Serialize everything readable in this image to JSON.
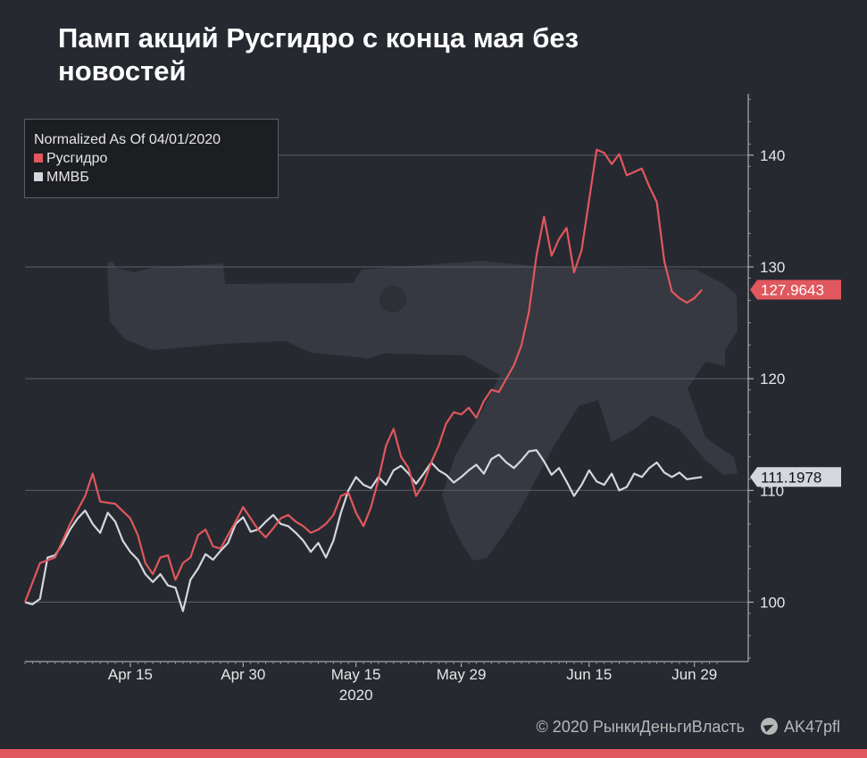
{
  "title": "Памп акций Русгидро с конца мая без новостей",
  "colors": {
    "background": "#262930",
    "rusgidro": "#e0575d",
    "mmvb": "#d4d8de",
    "grid": "#5d6068",
    "text": "#ffffff"
  },
  "legend": {
    "header": "Normalized As Of 04/01/2020",
    "items": [
      {
        "label": "Русгидро",
        "color": "#e0575d"
      },
      {
        "label": "ММВБ",
        "color": "#d4d8de"
      }
    ]
  },
  "footer": {
    "copyright": "© 2020  РынкиДеньгиВласть",
    "telegram": "AK47pfl"
  },
  "chart_data": {
    "type": "line",
    "x_tick_labels": [
      "Apr 15",
      "Apr 30",
      "May 15",
      "May 29",
      "Jun 15",
      "Jun 29"
    ],
    "x_tick_days": [
      14,
      29,
      44,
      58,
      75,
      89
    ],
    "year_label": "2020",
    "year_day": 44,
    "x_range_days": [
      0,
      92
    ],
    "y_ticks": [
      100,
      110,
      120,
      130,
      140
    ],
    "ylim": [
      95,
      145.5
    ],
    "grid": "horizontal",
    "legend_position": "top-left",
    "last_value_labels": [
      "127.9643",
      "111.1978"
    ],
    "series": [
      {
        "name": "Русгидро",
        "color": "#e0575d",
        "last_value": 127.9643,
        "points": [
          [
            0,
            100
          ],
          [
            2,
            103.5
          ],
          [
            4,
            104
          ],
          [
            6,
            107
          ],
          [
            8,
            109.5
          ],
          [
            9,
            111.5
          ],
          [
            10,
            109
          ],
          [
            12,
            108.8
          ],
          [
            14,
            107.5
          ],
          [
            15,
            106
          ],
          [
            16,
            103.5
          ],
          [
            17,
            102.5
          ],
          [
            18,
            104
          ],
          [
            19,
            104.2
          ],
          [
            20,
            102
          ],
          [
            21,
            103.5
          ],
          [
            22,
            104
          ],
          [
            23,
            106
          ],
          [
            24,
            106.5
          ],
          [
            25,
            105
          ],
          [
            26,
            104.8
          ],
          [
            27,
            106
          ],
          [
            28,
            107.2
          ],
          [
            29,
            108.5
          ],
          [
            30,
            107.5
          ],
          [
            31,
            106.5
          ],
          [
            32,
            105.8
          ],
          [
            33,
            106.6
          ],
          [
            34,
            107.5
          ],
          [
            35,
            107.8
          ],
          [
            36,
            107.2
          ],
          [
            37,
            106.8
          ],
          [
            38,
            106.2
          ],
          [
            39,
            106.5
          ],
          [
            40,
            107
          ],
          [
            41,
            107.8
          ],
          [
            42,
            109.5
          ],
          [
            43,
            109.8
          ],
          [
            44,
            108
          ],
          [
            45,
            106.8
          ],
          [
            46,
            108.5
          ],
          [
            47,
            111
          ],
          [
            48,
            114
          ],
          [
            49,
            115.5
          ],
          [
            50,
            113
          ],
          [
            51,
            112
          ],
          [
            52,
            109.5
          ],
          [
            53,
            110.6
          ],
          [
            54,
            112.5
          ],
          [
            55,
            114
          ],
          [
            56,
            116
          ],
          [
            57,
            117
          ],
          [
            58,
            116.8
          ],
          [
            59,
            117.4
          ],
          [
            60,
            116.5
          ],
          [
            61,
            118
          ],
          [
            62,
            119
          ],
          [
            63,
            118.8
          ],
          [
            64,
            120
          ],
          [
            65,
            121.2
          ],
          [
            66,
            123
          ],
          [
            67,
            126
          ],
          [
            68,
            131
          ],
          [
            69,
            134.5
          ],
          [
            70,
            131
          ],
          [
            71,
            132.5
          ],
          [
            72,
            133.5
          ],
          [
            73,
            129.5
          ],
          [
            74,
            131.5
          ],
          [
            75,
            136
          ],
          [
            76,
            140.5
          ],
          [
            77,
            140.2
          ],
          [
            78,
            139.2
          ],
          [
            79,
            140.1
          ],
          [
            80,
            138.2
          ],
          [
            81,
            138.5
          ],
          [
            82,
            138.8
          ],
          [
            83,
            137.2
          ],
          [
            84,
            135.8
          ],
          [
            85,
            130.5
          ],
          [
            86,
            127.8
          ],
          [
            87,
            127.2
          ],
          [
            88,
            126.8
          ],
          [
            89,
            127.2
          ],
          [
            90,
            127.9643
          ]
        ]
      },
      {
        "name": "ММВБ",
        "color": "#d4d8de",
        "last_value": 111.1978,
        "points": [
          [
            0,
            100
          ],
          [
            1,
            99.8
          ],
          [
            2,
            100.3
          ],
          [
            3,
            104
          ],
          [
            4,
            104.2
          ],
          [
            5,
            105.2
          ],
          [
            6,
            106.5
          ],
          [
            7,
            107.5
          ],
          [
            8,
            108.2
          ],
          [
            9,
            107
          ],
          [
            10,
            106.2
          ],
          [
            11,
            108
          ],
          [
            12,
            107.2
          ],
          [
            13,
            105.5
          ],
          [
            14,
            104.5
          ],
          [
            15,
            103.8
          ],
          [
            16,
            102.5
          ],
          [
            17,
            101.8
          ],
          [
            18,
            102.5
          ],
          [
            19,
            101.5
          ],
          [
            20,
            101.3
          ],
          [
            21,
            99.2
          ],
          [
            22,
            102
          ],
          [
            23,
            103
          ],
          [
            24,
            104.3
          ],
          [
            25,
            103.8
          ],
          [
            26,
            104.6
          ],
          [
            27,
            105.3
          ],
          [
            28,
            107
          ],
          [
            29,
            107.6
          ],
          [
            30,
            106.3
          ],
          [
            31,
            106.5
          ],
          [
            32,
            107.2
          ],
          [
            33,
            107.8
          ],
          [
            34,
            107
          ],
          [
            35,
            106.8
          ],
          [
            36,
            106.2
          ],
          [
            37,
            105.5
          ],
          [
            38,
            104.5
          ],
          [
            39,
            105.3
          ],
          [
            40,
            104
          ],
          [
            41,
            105.5
          ],
          [
            42,
            108
          ],
          [
            43,
            110
          ],
          [
            44,
            111.2
          ],
          [
            45,
            110.5
          ],
          [
            46,
            110.2
          ],
          [
            47,
            111.2
          ],
          [
            48,
            110.5
          ],
          [
            49,
            111.8
          ],
          [
            50,
            112.2
          ],
          [
            51,
            111.5
          ],
          [
            52,
            110.6
          ],
          [
            53,
            111.5
          ],
          [
            54,
            112.5
          ],
          [
            55,
            111.8
          ],
          [
            56,
            111.4
          ],
          [
            57,
            110.7
          ],
          [
            58,
            111.2
          ],
          [
            59,
            111.8
          ],
          [
            60,
            112.3
          ],
          [
            61,
            111.5
          ],
          [
            62,
            112.8
          ],
          [
            63,
            113.2
          ],
          [
            64,
            112.5
          ],
          [
            65,
            112
          ],
          [
            66,
            112.7
          ],
          [
            67,
            113.5
          ],
          [
            68,
            113.6
          ],
          [
            69,
            112.6
          ],
          [
            70,
            111.4
          ],
          [
            71,
            112
          ],
          [
            72,
            110.8
          ],
          [
            73,
            109.5
          ],
          [
            74,
            110.5
          ],
          [
            75,
            111.8
          ],
          [
            76,
            110.8
          ],
          [
            77,
            110.5
          ],
          [
            78,
            111.5
          ],
          [
            79,
            110
          ],
          [
            80,
            110.3
          ],
          [
            81,
            111.5
          ],
          [
            82,
            111.2
          ],
          [
            83,
            112
          ],
          [
            84,
            112.5
          ],
          [
            85,
            111.6
          ],
          [
            86,
            111.2
          ],
          [
            87,
            111.6
          ],
          [
            88,
            111
          ],
          [
            89,
            111.1
          ],
          [
            90,
            111.1978
          ]
        ]
      }
    ]
  }
}
